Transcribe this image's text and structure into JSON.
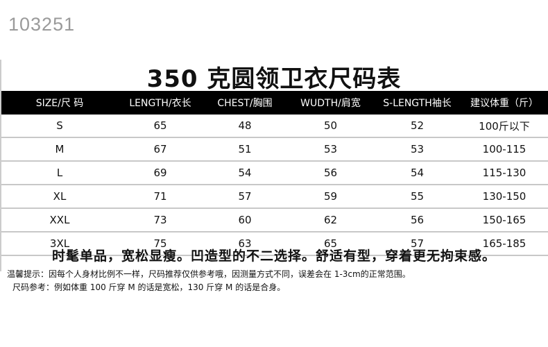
{
  "watermark": "103251",
  "title": "350 克圆领卫衣尺码表",
  "table": {
    "headers": [
      "SIZE/尺 码",
      "LENGTH/衣长",
      "CHEST/胸围",
      "WUDTH/肩宽",
      "S-LENGTH袖长",
      "建议体重（斤）"
    ],
    "rows": [
      [
        "S",
        "65",
        "48",
        "50",
        "52",
        "100斤以下"
      ],
      [
        "M",
        "67",
        "51",
        "53",
        "53",
        "100-115"
      ],
      [
        "L",
        "69",
        "54",
        "56",
        "54",
        "115-130"
      ],
      [
        "XL",
        "71",
        "57",
        "59",
        "55",
        "130-150"
      ],
      [
        "XXL",
        "73",
        "60",
        "62",
        "56",
        "150-165"
      ],
      [
        "3XL",
        "75",
        "63",
        "65",
        "57",
        "165-185"
      ]
    ]
  },
  "slogan": "时髦单品，宽松显瘦。凹造型的不二选择。舒适有型，穿着更无拘束感。",
  "note1": "温馨提示：因每个人身材比例不一样，尺码推荐仅供参考哦，因测量方式不同，误差会在 1-3cm的正常范围。",
  "note2": "尺码参考：例如体重 100 斤穿 M 的话是宽松，130 斤穿 M 的话是合身。"
}
